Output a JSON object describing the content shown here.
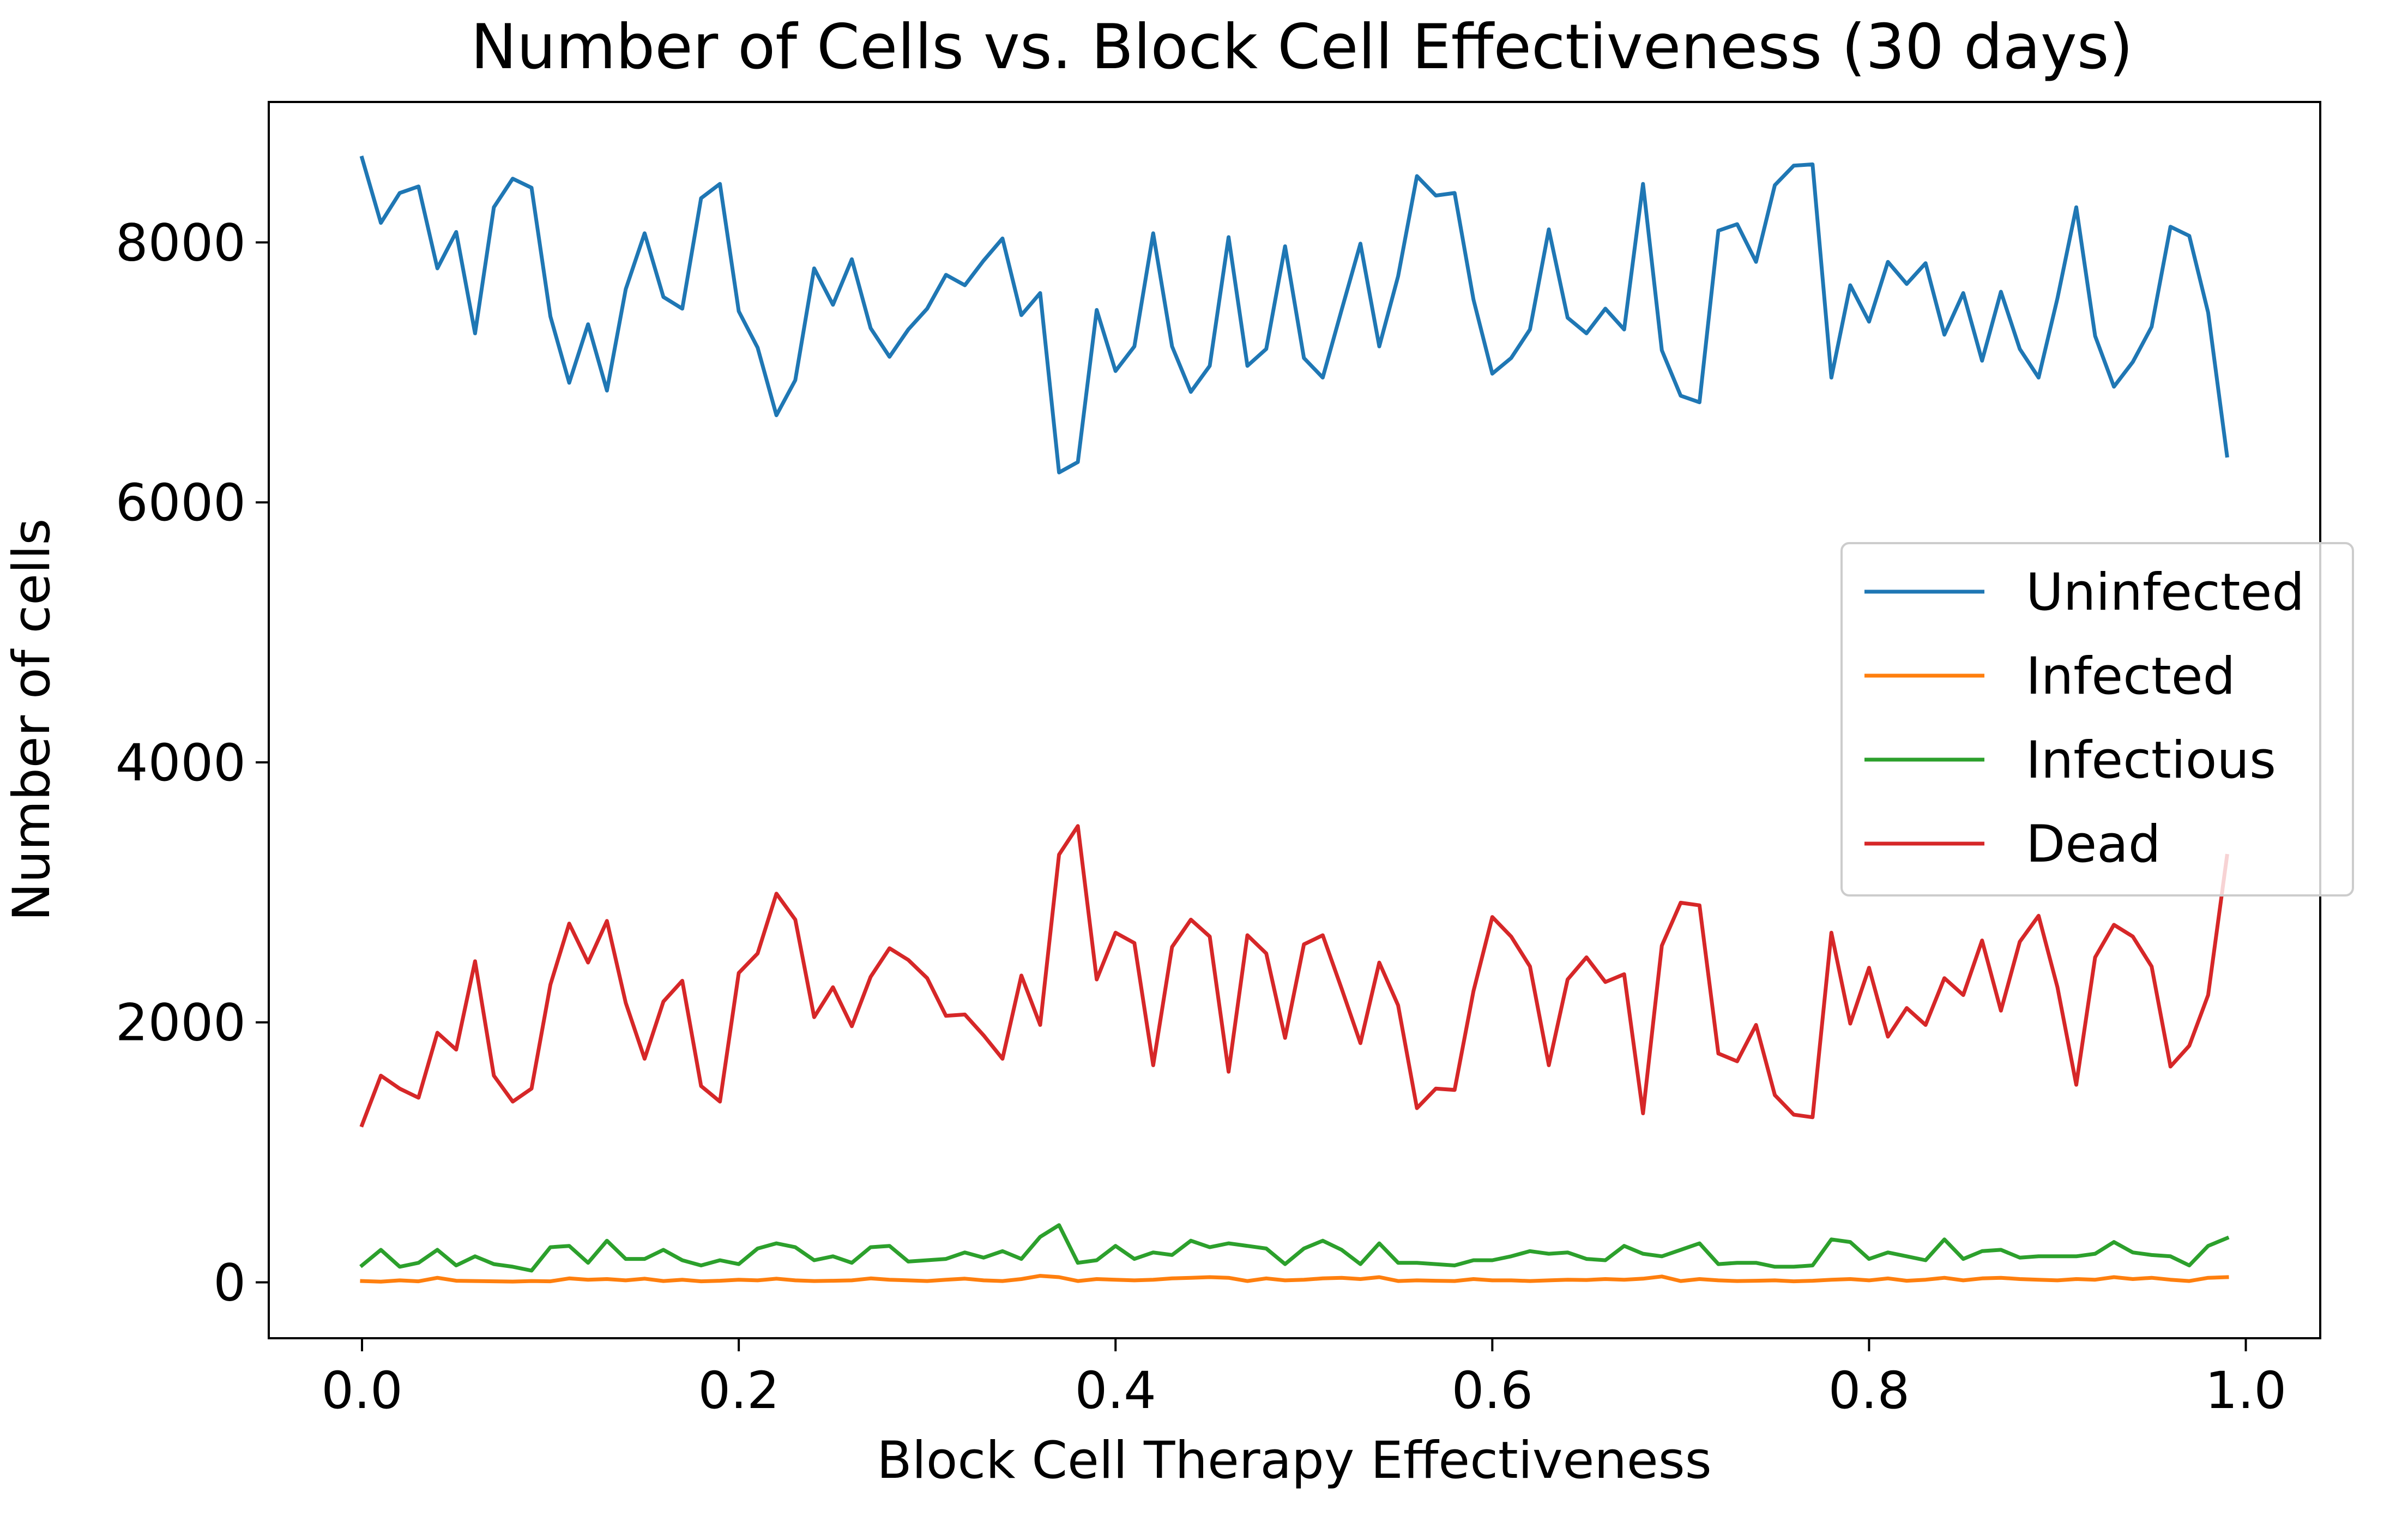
{
  "chart_data": {
    "type": "line",
    "title": "Number of Cells vs. Block Cell Effectiveness (30 days)",
    "xlabel": "Block Cell Therapy Effectiveness",
    "ylabel": "Number of cells",
    "xlim": [
      -0.0495,
      1.0395
    ],
    "ylim": [
      -430,
      9080
    ],
    "xticks": [
      0.0,
      0.2,
      0.4,
      0.6,
      0.8,
      1.0
    ],
    "xtick_labels": [
      "0.0",
      "0.2",
      "0.4",
      "0.6",
      "0.8",
      "1.0"
    ],
    "yticks": [
      0,
      2000,
      4000,
      6000,
      8000
    ],
    "ytick_labels": [
      "0",
      "2000",
      "4000",
      "6000",
      "8000"
    ],
    "grid": false,
    "legend_position": "center-right",
    "x": [
      0.0,
      0.01,
      0.02,
      0.03,
      0.04,
      0.05,
      0.06,
      0.07,
      0.08,
      0.09,
      0.1,
      0.11,
      0.12,
      0.13,
      0.14,
      0.15,
      0.16,
      0.17,
      0.18,
      0.19,
      0.2,
      0.21,
      0.22,
      0.23,
      0.24,
      0.25,
      0.26,
      0.27,
      0.28,
      0.29,
      0.3,
      0.31,
      0.32,
      0.33,
      0.34,
      0.35,
      0.36,
      0.37,
      0.38,
      0.39,
      0.4,
      0.41,
      0.42,
      0.43,
      0.44,
      0.45,
      0.46,
      0.47,
      0.48,
      0.49,
      0.5,
      0.51,
      0.52,
      0.53,
      0.54,
      0.55,
      0.56,
      0.57,
      0.58,
      0.59,
      0.6,
      0.61,
      0.62,
      0.63,
      0.64,
      0.65,
      0.66,
      0.67,
      0.68,
      0.69,
      0.7,
      0.71,
      0.72,
      0.73,
      0.74,
      0.75,
      0.76,
      0.77,
      0.78,
      0.79,
      0.8,
      0.81,
      0.82,
      0.83,
      0.84,
      0.85,
      0.86,
      0.87,
      0.88,
      0.89,
      0.9,
      0.91,
      0.92,
      0.93,
      0.94,
      0.95,
      0.96,
      0.97,
      0.98,
      0.99
    ],
    "series": [
      {
        "name": "Uninfected",
        "color": "#1f77b4",
        "values": [
          8650,
          8150,
          8380,
          8430,
          7800,
          8080,
          7300,
          8270,
          8490,
          8420,
          7430,
          6920,
          7370,
          6860,
          7640,
          8070,
          7580,
          7490,
          8340,
          8450,
          7470,
          7190,
          6670,
          6940,
          7800,
          7520,
          7870,
          7340,
          7120,
          7330,
          7490,
          7750,
          7670,
          7860,
          8030,
          7440,
          7610,
          6230,
          6310,
          7480,
          7010,
          7200,
          8070,
          7200,
          6850,
          7050,
          8040,
          7050,
          7180,
          7970,
          7110,
          6960,
          7480,
          7990,
          7200,
          7740,
          8510,
          8360,
          8380,
          7560,
          6990,
          7110,
          7330,
          8100,
          7420,
          7300,
          7490,
          7330,
          8450,
          7170,
          6820,
          6770,
          8090,
          8140,
          7850,
          8440,
          8590,
          8600,
          6960,
          7670,
          7390,
          7850,
          7680,
          7840,
          7290,
          7610,
          7090,
          7620,
          7180,
          6960,
          7570,
          8270,
          7280,
          6890,
          7080,
          7350,
          8120,
          8050,
          7460,
          6360
        ]
      },
      {
        "name": "Infected",
        "color": "#ff7f0e",
        "values": [
          10,
          5,
          15,
          8,
          35,
          12,
          10,
          8,
          6,
          10,
          8,
          30,
          20,
          25,
          15,
          28,
          10,
          20,
          8,
          12,
          20,
          15,
          28,
          15,
          10,
          12,
          15,
          30,
          20,
          15,
          10,
          20,
          28,
          15,
          10,
          25,
          50,
          40,
          10,
          25,
          20,
          15,
          20,
          30,
          35,
          40,
          35,
          10,
          30,
          15,
          20,
          30,
          35,
          25,
          40,
          10,
          15,
          12,
          10,
          25,
          15,
          15,
          10,
          15,
          20,
          18,
          25,
          20,
          28,
          45,
          10,
          25,
          15,
          10,
          12,
          15,
          8,
          12,
          20,
          25,
          15,
          30,
          12,
          20,
          35,
          15,
          30,
          35,
          25,
          20,
          15,
          25,
          20,
          40,
          25,
          35,
          20,
          10,
          35,
          40
        ]
      },
      {
        "name": "Infectious",
        "color": "#2ca02c",
        "values": [
          130,
          250,
          120,
          150,
          250,
          130,
          200,
          140,
          120,
          90,
          270,
          280,
          150,
          320,
          180,
          180,
          250,
          170,
          130,
          170,
          140,
          260,
          300,
          270,
          170,
          200,
          150,
          270,
          280,
          160,
          170,
          180,
          230,
          190,
          240,
          180,
          350,
          440,
          150,
          170,
          280,
          180,
          230,
          210,
          320,
          270,
          300,
          280,
          260,
          140,
          260,
          320,
          250,
          140,
          300,
          150,
          150,
          140,
          130,
          170,
          170,
          200,
          240,
          220,
          230,
          180,
          170,
          280,
          220,
          200,
          250,
          300,
          140,
          150,
          150,
          120,
          120,
          130,
          330,
          310,
          180,
          230,
          200,
          170,
          330,
          180,
          240,
          250,
          190,
          200,
          200,
          200,
          220,
          310,
          230,
          210,
          200,
          130,
          280,
          340
        ]
      },
      {
        "name": "Dead",
        "color": "#d62728",
        "values": [
          1210,
          1590,
          1490,
          1420,
          1920,
          1790,
          2470,
          1590,
          1390,
          1490,
          2290,
          2760,
          2460,
          2780,
          2150,
          1720,
          2160,
          2320,
          1510,
          1390,
          2380,
          2530,
          2990,
          2790,
          2040,
          2270,
          1970,
          2350,
          2570,
          2480,
          2340,
          2050,
          2060,
          1900,
          1720,
          2360,
          1980,
          3290,
          3510,
          2330,
          2690,
          2610,
          1670,
          2580,
          2790,
          2660,
          1620,
          2670,
          2530,
          1880,
          2600,
          2670,
          2260,
          1840,
          2460,
          2130,
          1340,
          1490,
          1480,
          2240,
          2810,
          2660,
          2430,
          1670,
          2330,
          2500,
          2310,
          2370,
          1300,
          2590,
          2920,
          2900,
          1760,
          1700,
          1980,
          1440,
          1290,
          1270,
          2690,
          1990,
          2420,
          1890,
          2110,
          1980,
          2340,
          2210,
          2630,
          2090,
          2620,
          2820,
          2270,
          1520,
          2500,
          2750,
          2660,
          2430,
          1660,
          1820,
          2210,
          3280
        ]
      }
    ]
  }
}
